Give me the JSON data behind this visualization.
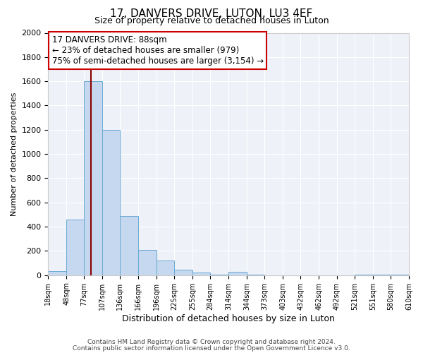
{
  "title": "17, DANVERS DRIVE, LUTON, LU3 4EF",
  "subtitle": "Size of property relative to detached houses in Luton",
  "xlabel": "Distribution of detached houses by size in Luton",
  "ylabel": "Number of detached properties",
  "bin_edges": [
    18,
    48,
    77,
    107,
    136,
    166,
    196,
    225,
    255,
    284,
    314,
    344,
    373,
    403,
    432,
    462,
    492,
    521,
    551,
    580,
    610
  ],
  "bar_heights": [
    35,
    460,
    1600,
    1200,
    490,
    210,
    120,
    45,
    20,
    5,
    30,
    5,
    0,
    0,
    0,
    0,
    0,
    5,
    5,
    5
  ],
  "bar_color": "#c5d8ef",
  "bar_edge_color": "#6aaad4",
  "property_line_x": 88,
  "property_line_color": "#8b0000",
  "annotation_text_line1": "17 DANVERS DRIVE: 88sqm",
  "annotation_text_line2": "← 23% of detached houses are smaller (979)",
  "annotation_text_line3": "75% of semi-detached houses are larger (3,154) →",
  "annotation_box_facecolor": "white",
  "annotation_box_edgecolor": "#cc0000",
  "ylim": [
    0,
    2000
  ],
  "yticks": [
    0,
    200,
    400,
    600,
    800,
    1000,
    1200,
    1400,
    1600,
    1800,
    2000
  ],
  "tick_labels": [
    "18sqm",
    "48sqm",
    "77sqm",
    "107sqm",
    "136sqm",
    "166sqm",
    "196sqm",
    "225sqm",
    "255sqm",
    "284sqm",
    "314sqm",
    "344sqm",
    "373sqm",
    "403sqm",
    "432sqm",
    "462sqm",
    "492sqm",
    "521sqm",
    "551sqm",
    "580sqm",
    "610sqm"
  ],
  "footer_line1": "Contains HM Land Registry data © Crown copyright and database right 2024.",
  "footer_line2": "Contains public sector information licensed under the Open Government Licence v3.0.",
  "fig_facecolor": "#ffffff",
  "plot_facecolor": "#eef2f8",
  "grid_color": "#ffffff",
  "title_fontsize": 11,
  "subtitle_fontsize": 9,
  "xlabel_fontsize": 9,
  "ylabel_fontsize": 8,
  "xtick_fontsize": 7,
  "ytick_fontsize": 8,
  "annotation_fontsize": 8.5,
  "footer_fontsize": 6.5
}
